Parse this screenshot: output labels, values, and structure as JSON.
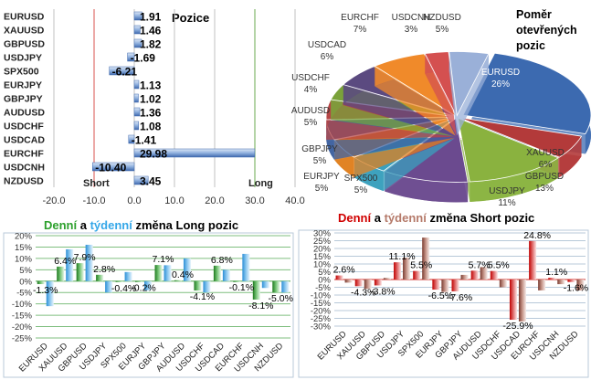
{
  "colors": {
    "bar_blue": "#5b86c8",
    "grid": "#c0c0c0",
    "short_line": "#d9534f",
    "long_line": "#6aa84f",
    "green": "#2ca02c",
    "cyan": "#35a7e8",
    "red": "#d00000",
    "brown": "#b57a6a",
    "border": "#b8c9d9"
  },
  "chart_data": [
    {
      "type": "bar",
      "orientation": "horizontal",
      "title": "Pozice",
      "categories": [
        "EURUSD",
        "XAUUSD",
        "GBPUSD",
        "USDJPY",
        "SPX500",
        "EURJPY",
        "GBPJPY",
        "AUDUSD",
        "USDCHF",
        "USDCAD",
        "EURCHF",
        "USDCNH",
        "NZDUSD"
      ],
      "values": [
        1.91,
        1.46,
        1.82,
        -1.69,
        -6.21,
        1.13,
        1.02,
        1.36,
        1.08,
        -1.41,
        29.98,
        -10.4,
        3.45
      ],
      "value_labels": [
        "1.91",
        "1.46",
        "1.82",
        "-1.69",
        "-6.21",
        "1.13",
        "1.02",
        "1.36",
        "1.08",
        "-1.41",
        "29.98",
        "-10.40",
        "3.45"
      ],
      "xlim": [
        -20,
        40
      ],
      "xticks": [
        "-20.0",
        "-10.0",
        "0.0",
        "10.0",
        "20.0",
        "30.0",
        "40.0"
      ],
      "annotations": [
        "Short",
        "Long"
      ],
      "grid": true
    },
    {
      "type": "pie",
      "title": "Poměr otevřených pozic",
      "labels": [
        "EURUSD",
        "XAUUSD",
        "GBPUSD",
        "USDJPY",
        "SPX500",
        "EURJPY",
        "GBPJPY",
        "AUDUSD",
        "USDCHF",
        "USDCAD",
        "EURCHF",
        "USDCNH",
        "NZDUSD"
      ],
      "values": [
        26,
        6,
        13,
        11,
        5,
        5,
        5,
        5,
        4,
        6,
        7,
        3,
        5
      ],
      "value_labels": [
        "26%",
        "6%",
        "13%",
        "11%",
        "5%",
        "5%",
        "5%",
        "5%",
        "4%",
        "6%",
        "7%",
        "3%",
        "5%"
      ],
      "colors": [
        "#3c6ab0",
        "#b33a3a",
        "#8ab23f",
        "#6b4a8f",
        "#3aa0bd",
        "#e0801f",
        "#3e62a0",
        "#b54545",
        "#7aa23a",
        "#5b4a80",
        "#f08a2a",
        "#d45050",
        "#9ab0d8"
      ]
    },
    {
      "type": "bar",
      "title_parts": [
        "Denní",
        " a ",
        "týdenní",
        " změna Long pozic"
      ],
      "categories": [
        "EURUSD",
        "XAUUSD",
        "GBPUSD",
        "USDJPY",
        "SPX500",
        "EURJPY",
        "GBPJPY",
        "AUDUSD",
        "USDCHF",
        "USDCAD",
        "EURCHF",
        "USDCNH",
        "NZDUSD"
      ],
      "series": [
        {
          "values": [
            -1.3,
            6.4,
            7.9,
            2.8,
            -0.4,
            -0.2,
            7.1,
            0.4,
            -4.1,
            6.8,
            -0.1,
            -8.1,
            -5.0
          ]
        },
        {
          "values": [
            -11.0,
            14.0,
            16.0,
            -5.0,
            4.0,
            -4.0,
            7.0,
            10.0,
            -5.0,
            5.0,
            12.0,
            -3.0,
            -5.0
          ]
        }
      ],
      "value_labels": [
        {
          "index": 0,
          "text": "-1.3%"
        },
        {
          "index": 1,
          "text": "6.4%"
        },
        {
          "index": 2,
          "text": "7.9%"
        },
        {
          "index": 3,
          "text": "2.8%"
        },
        {
          "index": 4,
          "text": "-0.4%"
        },
        {
          "index": 5,
          "text": "-0.2%"
        },
        {
          "index": 6,
          "text": "7.1%"
        },
        {
          "index": 7,
          "text": "0.4%"
        },
        {
          "index": 8,
          "text": "-4.1%"
        },
        {
          "index": 9,
          "text": "6.8%"
        },
        {
          "index": 10,
          "text": "-0.1%"
        },
        {
          "index": 11,
          "text": "-8.1%"
        },
        {
          "index": 12,
          "text": "-5.0%"
        }
      ],
      "ylim": [
        -25,
        20
      ],
      "yticks": [
        "20%",
        "15%",
        "10%",
        "5%",
        "0%",
        "-5%",
        "-10%",
        "-15%",
        "-20%",
        "-25%"
      ],
      "grid": true
    },
    {
      "type": "bar",
      "title_parts": [
        "Denní",
        " a ",
        "týdenní",
        " změna Short pozic"
      ],
      "categories": [
        "EURUSD",
        "XAUUSD",
        "GBPUSD",
        "USDJPY",
        "SPX500",
        "EURJPY",
        "GBPJPY",
        "AUDUSD",
        "USDCHF",
        "USDCAD",
        "EURCHF",
        "USDCNH",
        "NZDUSD"
      ],
      "series": [
        {
          "values": [
            2.6,
            -4.3,
            -3.8,
            11.1,
            5.5,
            -6.5,
            -7.6,
            5.7,
            5.5,
            -25.9,
            24.8,
            1.1,
            -1.6
          ]
        },
        {
          "values": [
            -2.0,
            -6.0,
            1.0,
            14.0,
            27.0,
            -8.0,
            3.0,
            8.0,
            -5.0,
            -27.0,
            -7.0,
            -3.0,
            -7.0
          ]
        }
      ],
      "value_labels": [
        {
          "index": 0,
          "text": "2.6%"
        },
        {
          "index": 1,
          "text": "-4.3%"
        },
        {
          "index": 2,
          "text": "-3.8%"
        },
        {
          "index": 3,
          "text": "11.1%"
        },
        {
          "index": 4,
          "text": "5.5%"
        },
        {
          "index": 5,
          "text": "-6.5%"
        },
        {
          "index": 6,
          "text": "-7.6%"
        },
        {
          "index": 7,
          "text": "5.7%"
        },
        {
          "index": 8,
          "text": "5.5%"
        },
        {
          "index": 9,
          "text": "-25.9%"
        },
        {
          "index": 10,
          "text": "24.8%"
        },
        {
          "index": 11,
          "text": "1.1%"
        },
        {
          "index": 12,
          "text": "-1.6%"
        }
      ],
      "ylim": [
        -30,
        30
      ],
      "yticks": [
        "30%",
        "25%",
        "20%",
        "15%",
        "10%",
        "5%",
        "0%",
        "-5%",
        "-10%",
        "-15%",
        "-20%",
        "-25%",
        "-30%"
      ],
      "grid": true
    }
  ]
}
